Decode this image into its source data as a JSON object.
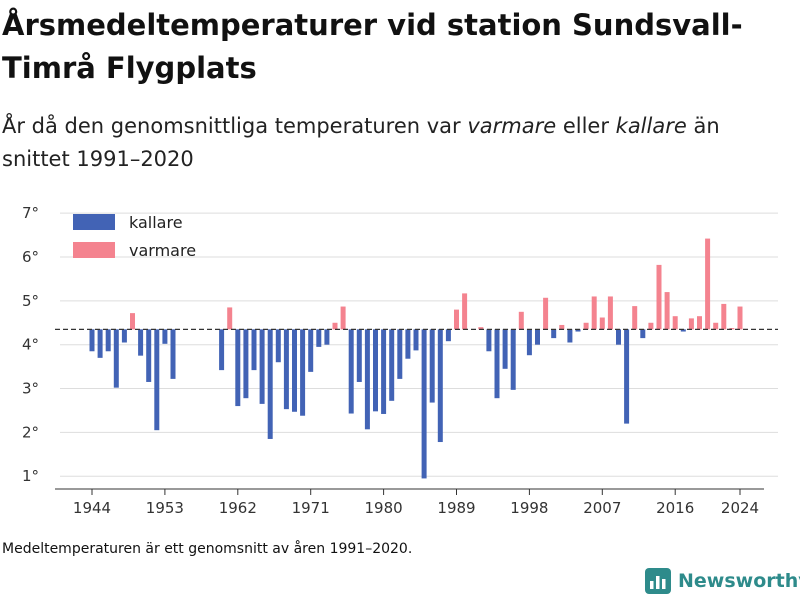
{
  "title": "Årsmedeltemperaturer vid station Sundsvall-Timrå Flygplats",
  "subtitle": {
    "pre": "År då den genomsnittliga temperaturen var ",
    "warmer": "varmare",
    "mid": " eller ",
    "colder": "kallare",
    "post": " än snittet 1991–2020"
  },
  "footnote": "Medeltemperaturen är ett genomsnitt av åren 1991–2020.",
  "brand": {
    "name": "Newsworthy",
    "icon": "bar-chart-logo-icon"
  },
  "colors": {
    "colder": "#4263b5",
    "warmer": "#f4838f",
    "baseline": "#333333",
    "grid": "#dddddd"
  },
  "chart_data": {
    "type": "bar",
    "baseline": 4.35,
    "ylim": [
      0.8,
      7.3
    ],
    "yticks": [
      1,
      2,
      3,
      4,
      5,
      6,
      7
    ],
    "ytick_labels": [
      "1°",
      "2°",
      "3°",
      "4°",
      "5°",
      "6°",
      "7°"
    ],
    "xticks": [
      1944,
      1953,
      1962,
      1971,
      1980,
      1989,
      1998,
      2007,
      2016,
      2024
    ],
    "xtick_labels": [
      "1944",
      "1953",
      "1962",
      "1971",
      "1980",
      "1989",
      "1998",
      "2007",
      "2016",
      "2024"
    ],
    "legend": [
      {
        "key": "colder",
        "label": "kallare"
      },
      {
        "key": "warmer",
        "label": "varmare"
      }
    ],
    "legend_position": "top-left",
    "grid": true,
    "x": [
      1944,
      1945,
      1946,
      1947,
      1948,
      1949,
      1950,
      1951,
      1952,
      1953,
      1954,
      1960,
      1961,
      1962,
      1963,
      1964,
      1965,
      1966,
      1967,
      1968,
      1969,
      1970,
      1971,
      1972,
      1973,
      1974,
      1975,
      1976,
      1977,
      1978,
      1979,
      1980,
      1981,
      1982,
      1983,
      1984,
      1985,
      1986,
      1987,
      1988,
      1989,
      1990,
      1992,
      1993,
      1994,
      1995,
      1996,
      1997,
      1998,
      1999,
      2000,
      2001,
      2002,
      2003,
      2004,
      2005,
      2006,
      2007,
      2008,
      2009,
      2010,
      2011,
      2012,
      2013,
      2014,
      2015,
      2016,
      2017,
      2018,
      2019,
      2020,
      2021,
      2022,
      2023,
      2024
    ],
    "values": [
      3.85,
      3.7,
      3.85,
      3.02,
      4.05,
      4.72,
      3.75,
      3.15,
      2.05,
      4.02,
      3.22,
      3.42,
      4.85,
      2.6,
      2.78,
      3.42,
      2.65,
      1.85,
      3.6,
      2.53,
      2.47,
      2.38,
      3.38,
      3.95,
      4.0,
      4.5,
      4.87,
      2.43,
      3.15,
      2.07,
      2.48,
      2.42,
      2.72,
      3.22,
      3.68,
      3.87,
      0.95,
      2.68,
      1.78,
      4.08,
      4.8,
      5.17,
      4.4,
      3.85,
      2.78,
      3.45,
      2.97,
      4.75,
      3.76,
      4.0,
      5.07,
      4.15,
      4.45,
      4.05,
      4.3,
      4.5,
      5.1,
      4.62,
      5.1,
      4.0,
      2.2,
      4.88,
      4.15,
      4.5,
      5.82,
      5.2,
      4.65,
      4.3,
      4.6,
      4.65,
      6.42,
      4.5,
      4.93,
      4.38,
      4.87
    ]
  }
}
